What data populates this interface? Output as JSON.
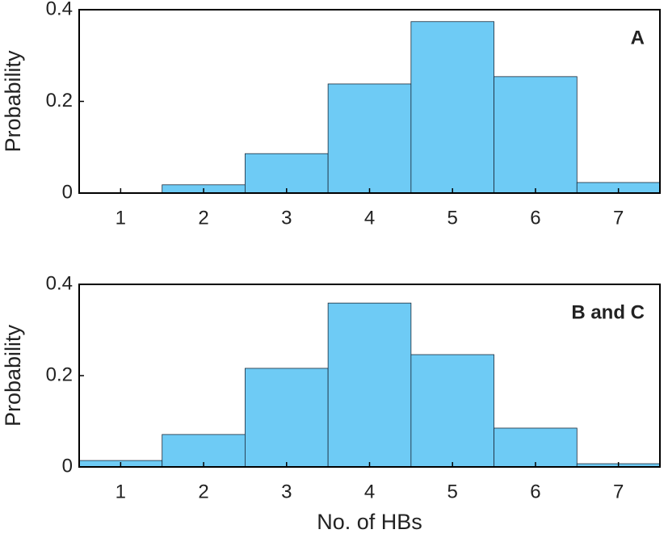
{
  "chart_data": [
    {
      "type": "bar",
      "annotation": "A",
      "ylabel": "Probability",
      "categories": [
        "1",
        "2",
        "3",
        "4",
        "5",
        "6",
        "7"
      ],
      "values": [
        0,
        0.018,
        0.086,
        0.238,
        0.374,
        0.254,
        0.023
      ],
      "color": "#6ecbf5",
      "ylim": [
        0,
        0.4
      ],
      "yticks": [
        0,
        0.2,
        0.4
      ]
    },
    {
      "type": "bar",
      "annotation": "B and C",
      "ylabel": "Probability",
      "xlabel": "No. of HBs",
      "categories": [
        "1",
        "2",
        "3",
        "4",
        "5",
        "6",
        "7"
      ],
      "values": [
        0.014,
        0.071,
        0.216,
        0.359,
        0.246,
        0.085,
        0.007
      ],
      "color": "#6ecbf5",
      "ylim": [
        0,
        0.4
      ],
      "yticks": [
        0,
        0.2,
        0.4
      ]
    }
  ]
}
